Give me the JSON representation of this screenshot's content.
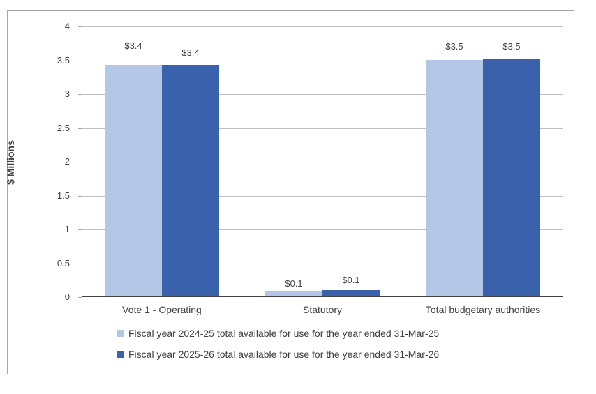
{
  "chart_data": {
    "type": "bar",
    "title": "",
    "categories": [
      "Vote 1 - Operating",
      "Statutory",
      "Total budgetary authorities"
    ],
    "series": [
      {
        "name": "Fiscal year 2024-25 total available for use for the year ended 31-Mar-25",
        "color": "#b4c7e7",
        "values": [
          3.43,
          0.09,
          3.51
        ],
        "data_labels": [
          "$3.4",
          "$0.1",
          "$3.5"
        ]
      },
      {
        "name": "Fiscal year 2025-26 total available for use for the year ended 31-Mar-26",
        "color": "#3a62ac",
        "values": [
          3.43,
          0.1,
          3.53
        ],
        "data_labels": [
          "$3.4",
          "$0.1",
          "$3.5"
        ]
      }
    ],
    "xlabel": "",
    "ylabel": "$ Millions",
    "ylim": [
      0,
      4
    ],
    "ytick_interval": 0.5,
    "ytick_labels": [
      "0",
      "0.5",
      "1",
      "1.5",
      "2",
      "2.5",
      "3",
      "3.5",
      "4"
    ],
    "grid": "horizontal",
    "legend_position": "bottom-left",
    "colors": {
      "chart_border": "#a6a6a6",
      "gridline": "#c0c0c0",
      "y_axis_line": "#a6a6a6",
      "x_axis_line": "#404040",
      "text": "#404040"
    }
  }
}
